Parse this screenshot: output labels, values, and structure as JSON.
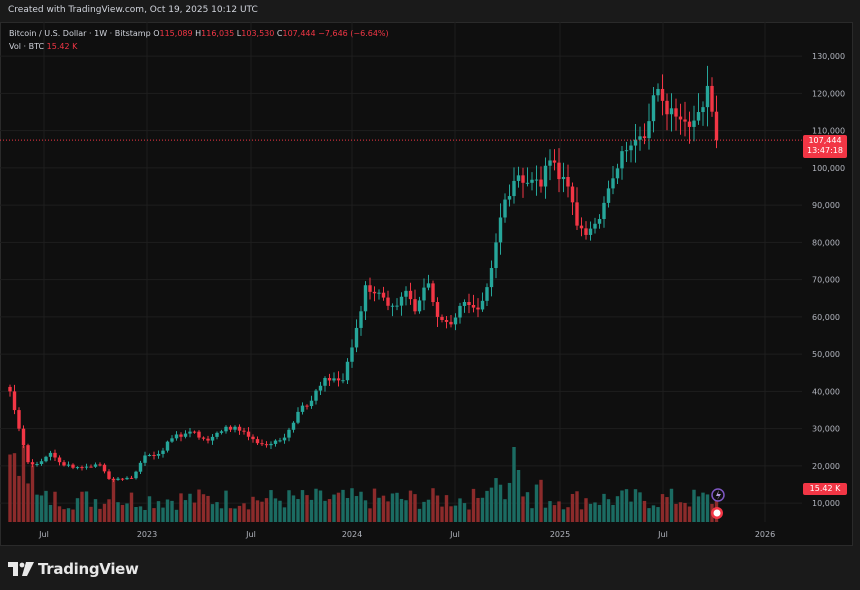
{
  "header": {
    "created_text": "Created with TradingView.com, Oct 19, 2025 10:12 UTC"
  },
  "legend": {
    "symbol": "Bitcoin / U.S. Dollar · 1W · Bitstamp",
    "open_label": "O",
    "open": "115,089",
    "high_label": "H",
    "high": "116,035",
    "low_label": "L",
    "low": "103,530",
    "close_label": "C",
    "close": "107,444",
    "change": "−7,646 (−6.64%)",
    "vol_label": "Vol · BTC",
    "vol_value": "15.42 K"
  },
  "price_tag": {
    "price": "107,444",
    "countdown": "13:47:18"
  },
  "volume_tag": "15.42 K",
  "footer": {
    "brand": "TradingView"
  },
  "colors": {
    "up": "#26a69a",
    "down": "#f23645",
    "up_vol": "#1b6b62",
    "down_vol": "#8c2b2b",
    "grid": "#1e1e1e",
    "axis_text": "#b2b5be"
  },
  "chart_data": {
    "type": "candlestick",
    "interval": "1W",
    "y_ticks": [
      10000,
      20000,
      30000,
      40000,
      50000,
      60000,
      70000,
      80000,
      90000,
      100000,
      110000,
      120000,
      130000
    ],
    "y_tick_labels": [
      "10,000",
      "20,000",
      "30,000",
      "40,000",
      "50,000",
      "60,000",
      "70,000",
      "80,000",
      "90,000",
      "100,000",
      "110,000",
      "120,000",
      "130,000"
    ],
    "x_tick_labels": [
      "Jul",
      "2023",
      "Jul",
      "2024",
      "Jul",
      "2025",
      "Jul",
      "2026"
    ],
    "ylim": [
      0,
      135000
    ],
    "last_price": 107444,
    "anchors": [
      [
        0,
        40000
      ],
      [
        2,
        30000
      ],
      [
        4,
        21000
      ],
      [
        6,
        20500
      ],
      [
        9,
        23500
      ],
      [
        11,
        21000
      ],
      [
        14,
        19500
      ],
      [
        17,
        19800
      ],
      [
        20,
        20300
      ],
      [
        22,
        16500
      ],
      [
        27,
        16700
      ],
      [
        30,
        22800
      ],
      [
        33,
        23200
      ],
      [
        36,
        27400
      ],
      [
        40,
        29200
      ],
      [
        44,
        26800
      ],
      [
        48,
        30500
      ],
      [
        52,
        29200
      ],
      [
        55,
        26100
      ],
      [
        58,
        25900
      ],
      [
        61,
        27600
      ],
      [
        64,
        34500
      ],
      [
        67,
        37500
      ],
      [
        70,
        43600
      ],
      [
        74,
        43000
      ],
      [
        76,
        51800
      ],
      [
        78,
        61500
      ],
      [
        79,
        68500
      ],
      [
        82,
        66500
      ],
      [
        85,
        63000
      ],
      [
        88,
        67000
      ],
      [
        90,
        61500
      ],
      [
        93,
        69000
      ],
      [
        95,
        60000
      ],
      [
        98,
        58000
      ],
      [
        101,
        64000
      ],
      [
        104,
        62000
      ],
      [
        106,
        68000
      ],
      [
        108,
        80000
      ],
      [
        110,
        91500
      ],
      [
        112,
        96500
      ],
      [
        113,
        98000
      ],
      [
        115,
        96000
      ],
      [
        118,
        95000
      ],
      [
        120,
        102000
      ],
      [
        122,
        97000
      ],
      [
        124,
        95000
      ],
      [
        126,
        84500
      ],
      [
        128,
        82000
      ],
      [
        130,
        85000
      ],
      [
        133,
        94500
      ],
      [
        136,
        104500
      ],
      [
        138,
        106000
      ],
      [
        141,
        108000
      ],
      [
        143,
        119500
      ],
      [
        145,
        118000
      ],
      [
        147,
        116000
      ],
      [
        149,
        113000
      ],
      [
        151,
        111000
      ],
      [
        153,
        115000
      ],
      [
        155,
        122000
      ],
      [
        156,
        115089
      ],
      [
        157,
        107444
      ]
    ]
  }
}
